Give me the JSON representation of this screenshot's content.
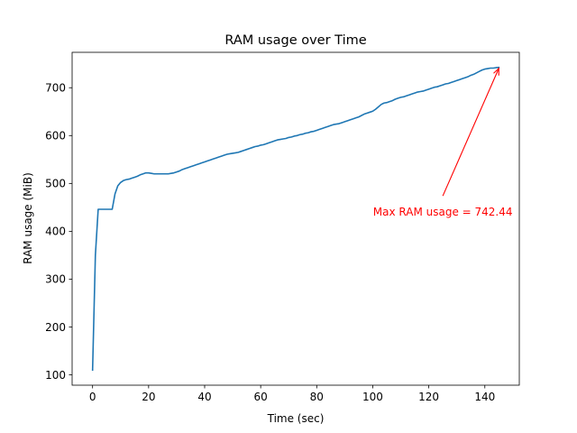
{
  "chart_data": {
    "type": "line",
    "title": "RAM usage over Time",
    "xlabel": "Time (sec)",
    "ylabel": "RAM usage (MiB)",
    "xlim": [
      -7.3,
      152.3
    ],
    "ylim": [
      78.4,
      774.0
    ],
    "xticks": [
      0,
      20,
      40,
      60,
      80,
      100,
      120,
      140
    ],
    "yticks": [
      100,
      200,
      300,
      400,
      500,
      600,
      700
    ],
    "grid": false,
    "series": [
      {
        "color": "#1f77b4",
        "x": [
          0,
          1,
          2,
          3,
          4,
          5,
          6,
          7,
          8,
          9,
          10,
          11,
          12,
          13,
          14,
          15,
          16,
          17,
          18,
          19,
          20,
          21,
          22,
          23,
          24,
          25,
          26,
          27,
          28,
          29,
          30,
          31,
          32,
          33,
          34,
          35,
          36,
          37,
          38,
          39,
          40,
          41,
          42,
          43,
          44,
          45,
          46,
          47,
          48,
          49,
          50,
          51,
          52,
          53,
          54,
          55,
          56,
          57,
          58,
          59,
          60,
          61,
          62,
          63,
          64,
          65,
          66,
          67,
          68,
          69,
          70,
          71,
          72,
          73,
          74,
          75,
          76,
          77,
          78,
          79,
          80,
          81,
          82,
          83,
          84,
          85,
          86,
          87,
          88,
          89,
          90,
          91,
          92,
          93,
          94,
          95,
          96,
          97,
          98,
          99,
          100,
          101,
          102,
          103,
          104,
          105,
          106,
          107,
          108,
          109,
          110,
          111,
          112,
          113,
          114,
          115,
          116,
          117,
          118,
          119,
          120,
          121,
          122,
          123,
          124,
          125,
          126,
          127,
          128,
          129,
          130,
          131,
          132,
          133,
          134,
          135,
          136,
          137,
          138,
          139,
          140,
          141,
          142,
          143,
          144,
          145
        ],
        "y": [
          110,
          350,
          446,
          446,
          446,
          446,
          446,
          446,
          478,
          495,
          502,
          506,
          508,
          509,
          511,
          513,
          515,
          518,
          520,
          522,
          522,
          521,
          520,
          520,
          520,
          520,
          520,
          520,
          521,
          522,
          524,
          526,
          529,
          531,
          533,
          535,
          537,
          539,
          541,
          543,
          545,
          547,
          549,
          551,
          553,
          555,
          557,
          559,
          561,
          562,
          563,
          564,
          565,
          567,
          569,
          571,
          573,
          575,
          577,
          578,
          580,
          581,
          583,
          585,
          587,
          589,
          591,
          592,
          593,
          594,
          596,
          597,
          599,
          600,
          602,
          603,
          605,
          606,
          608,
          609,
          611,
          613,
          615,
          617,
          619,
          621,
          623,
          624,
          625,
          627,
          629,
          631,
          633,
          635,
          637,
          639,
          642,
          645,
          647,
          649,
          651,
          655,
          660,
          665,
          668,
          669,
          671,
          673,
          676,
          678,
          680,
          681,
          683,
          685,
          687,
          689,
          691,
          692,
          693,
          695,
          697,
          699,
          701,
          702,
          704,
          706,
          708,
          709,
          711,
          713,
          715,
          717,
          719,
          721,
          723,
          726,
          728,
          731,
          734,
          737,
          739,
          740,
          741,
          741,
          742,
          742.44
        ]
      }
    ],
    "annotation": {
      "text": "Max RAM usage = 742.44",
      "color": "#ff0000",
      "xy": [
        145,
        742.44
      ],
      "xytext": [
        125,
        440
      ]
    }
  }
}
